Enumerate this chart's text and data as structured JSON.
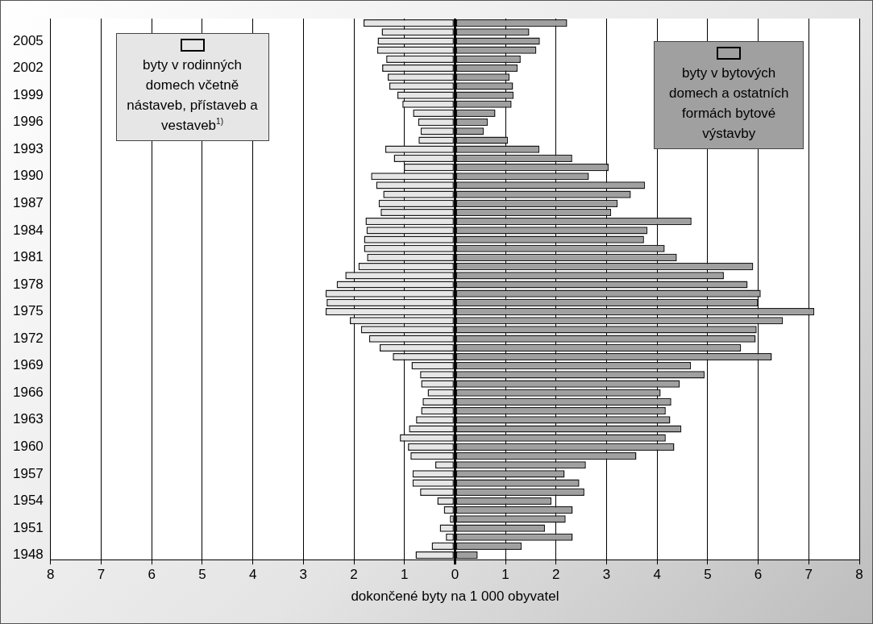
{
  "chart_data": {
    "type": "bar",
    "orientation": "horizontal",
    "stacked": true,
    "xlabel": "dokončené byty na 1 000 obyvatel",
    "categories": [
      null,
      null,
      "2005",
      null,
      null,
      "2002",
      null,
      null,
      "1999",
      null,
      null,
      "1996",
      null,
      null,
      "1993",
      null,
      null,
      "1990",
      null,
      null,
      "1987",
      null,
      null,
      "1984",
      null,
      null,
      "1981",
      null,
      null,
      "1978",
      null,
      null,
      "1975",
      null,
      null,
      "1972",
      null,
      null,
      "1969",
      null,
      null,
      "1966",
      null,
      null,
      "1963",
      null,
      null,
      "1960",
      null,
      null,
      "1957",
      null,
      null,
      "1954",
      null,
      null,
      "1951",
      null,
      null,
      "1948"
    ],
    "series": [
      {
        "name": "byty v rodinných domech včetně nástaveb, přístaveb a vestaveb$^{1)}$",
        "color": "#e6e6e6",
        "values": [
          -1.81,
          -1.45,
          -1.53,
          -1.54,
          -1.36,
          -1.44,
          -1.33,
          -1.3,
          -1.14,
          -1.04,
          -0.83,
          -0.73,
          -0.68,
          -0.72,
          -1.38,
          -1.21,
          -1.01,
          -1.66,
          -1.56,
          -1.42,
          -1.51,
          -1.47,
          -1.77,
          -1.75,
          -1.8,
          -1.8,
          -1.74,
          -1.91,
          -2.17,
          -2.34,
          -2.56,
          -2.54,
          -2.56,
          -2.08,
          -1.86,
          -1.7,
          -1.49,
          -1.23,
          -0.86,
          -0.69,
          -0.67,
          -0.54,
          -0.64,
          -0.67,
          -0.77,
          -0.91,
          -1.09,
          -0.93,
          -0.88,
          -0.39,
          -0.84,
          -0.84,
          -0.69,
          -0.35,
          -0.22,
          -0.1,
          -0.3,
          -0.18,
          -0.46,
          -0.78
        ]
      },
      {
        "name": "byty v bytových domech a ostatních formách bytové výstavby",
        "color": "#a0a0a0",
        "values": [
          2.22,
          1.47,
          1.68,
          1.61,
          1.3,
          1.24,
          1.08,
          1.15,
          1.16,
          1.12,
          0.8,
          0.65,
          0.57,
          1.05,
          1.67,
          2.32,
          3.04,
          2.65,
          3.76,
          3.48,
          3.22,
          3.09,
          4.68,
          3.81,
          3.74,
          4.15,
          4.39,
          5.9,
          5.32,
          5.79,
          6.05,
          6.0,
          7.11,
          6.49,
          5.97,
          5.95,
          5.66,
          6.27,
          4.67,
          4.94,
          4.45,
          4.07,
          4.28,
          4.17,
          4.26,
          4.48,
          4.17,
          4.34,
          3.59,
          2.59,
          2.17,
          2.46,
          2.56,
          1.91,
          2.33,
          2.19,
          1.78,
          2.33,
          1.32,
          0.45
        ]
      }
    ],
    "xlim": [
      -8,
      8
    ],
    "xticks": [
      {
        "value": -8,
        "label": "8"
      },
      {
        "value": -7,
        "label": "7"
      },
      {
        "value": -6,
        "label": "6"
      },
      {
        "value": -5,
        "label": "5"
      },
      {
        "value": -4,
        "label": "4"
      },
      {
        "value": -3,
        "label": "3"
      },
      {
        "value": -2,
        "label": "2"
      },
      {
        "value": -1,
        "label": "1"
      },
      0,
      1,
      2,
      3,
      4,
      5,
      6,
      7,
      8
    ],
    "grid": "x",
    "legend": "top"
  }
}
